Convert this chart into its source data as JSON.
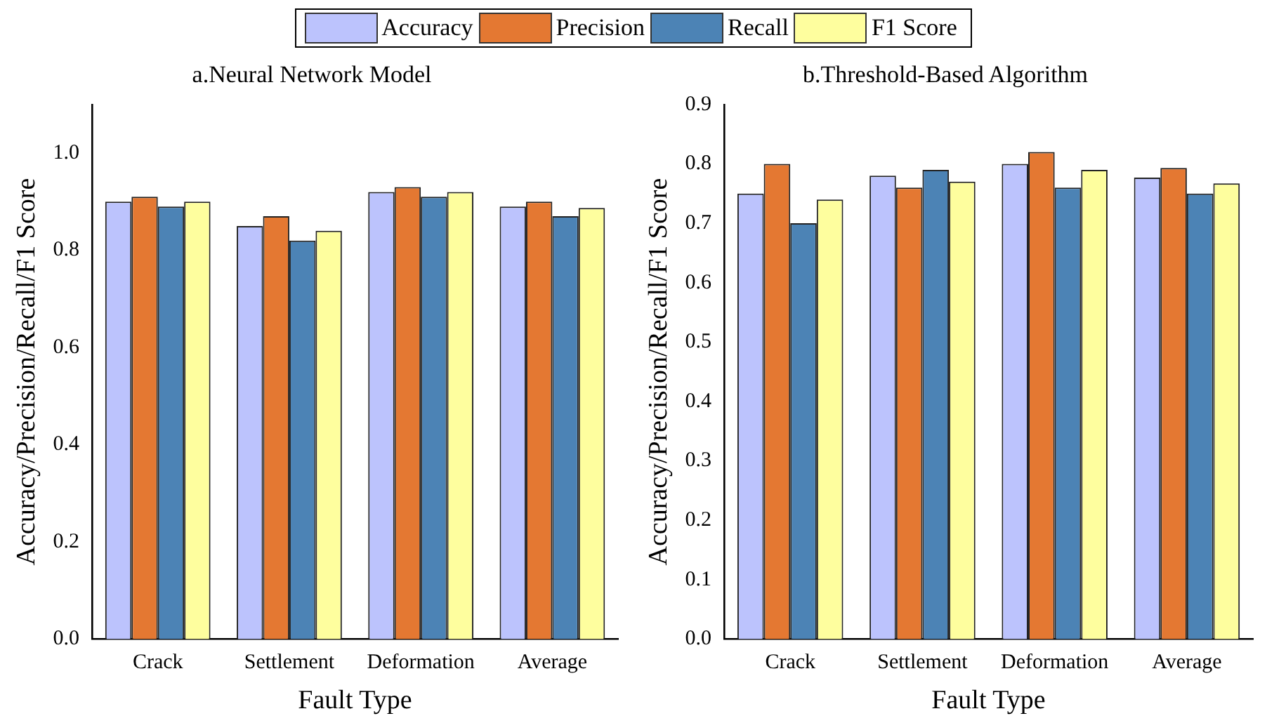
{
  "chart_data": [
    {
      "type": "bar",
      "title": "a.Neural Network Model",
      "xlabel": "Fault Type",
      "ylabel": "Accuracy/Precision/Recall/F1 Score",
      "categories": [
        "Crack",
        "Settlement",
        "Deformation",
        "Average"
      ],
      "legend": "top",
      "grid": false,
      "ylim": [
        0,
        1.1
      ],
      "yticks": [
        {
          "value": 0,
          "label": "0.0"
        },
        {
          "value": 0.2,
          "label": "0.2"
        },
        {
          "value": 0.4,
          "label": "0.4"
        },
        {
          "value": 0.6,
          "label": "0.6"
        },
        {
          "value": 0.8,
          "label": "0.8"
        },
        {
          "value": 1.0,
          "label": "1.0"
        }
      ],
      "series": [
        {
          "name": "Accuracy",
          "color": "#bcc3fd",
          "values": [
            0.9,
            0.85,
            0.92,
            0.89
          ]
        },
        {
          "name": "Precision",
          "color": "#e47832",
          "values": [
            0.91,
            0.87,
            0.93,
            0.9
          ]
        },
        {
          "name": "Recall",
          "color": "#4c83b5",
          "values": [
            0.89,
            0.82,
            0.91,
            0.87
          ]
        },
        {
          "name": "F1 Score",
          "color": "#fefe9e",
          "values": [
            0.9,
            0.84,
            0.92,
            0.887
          ]
        }
      ]
    },
    {
      "type": "bar",
      "title": "b.Threshold-Based Algorithm",
      "xlabel": "Fault Type",
      "ylabel": "Accuracy/Precision/Recall/F1 Score",
      "categories": [
        "Crack",
        "Settlement",
        "Deformation",
        "Average"
      ],
      "grid": false,
      "ylim": [
        0,
        0.9
      ],
      "yticks": [
        {
          "value": 0,
          "label": "0.0"
        },
        {
          "value": 0.1,
          "label": "0.1"
        },
        {
          "value": 0.2,
          "label": "0.2"
        },
        {
          "value": 0.3,
          "label": "0.3"
        },
        {
          "value": 0.4,
          "label": "0.4"
        },
        {
          "value": 0.5,
          "label": "0.5"
        },
        {
          "value": 0.6,
          "label": "0.6"
        },
        {
          "value": 0.7,
          "label": "0.7"
        },
        {
          "value": 0.8,
          "label": "0.8"
        },
        {
          "value": 0.9,
          "label": "0.9"
        }
      ],
      "series": [
        {
          "color": "#bcc3fd",
          "values": [
            0.75,
            0.78,
            0.8,
            0.777
          ]
        },
        {
          "color": "#e47832",
          "values": [
            0.8,
            0.76,
            0.82,
            0.793
          ]
        },
        {
          "color": "#4c83b5",
          "values": [
            0.7,
            0.79,
            0.76,
            0.75
          ]
        },
        {
          "color": "#fefe9e",
          "values": [
            0.74,
            0.77,
            0.79,
            0.767
          ]
        }
      ]
    }
  ]
}
